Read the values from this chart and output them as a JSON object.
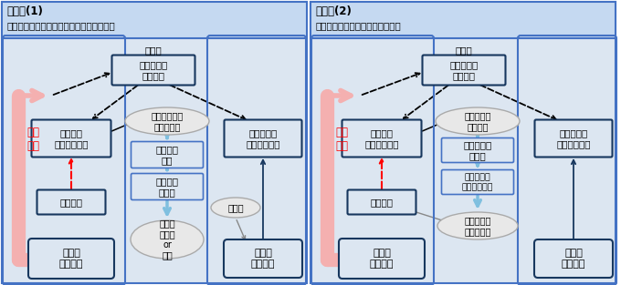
{
  "fig_width": 6.8,
  "fig_height": 3.13,
  "dpi": 100,
  "bg_color": "#ffffff",
  "panel_bg": "#dce6f1",
  "panel_border": "#4472c4",
  "header_bg": "#c5d9f1",
  "box_fill": "#dce6f1",
  "box_dark_border": "#17375e",
  "box_blue_border": "#4472c4",
  "ellipse_fill": "#e8e8e8",
  "ellipse_border": "#aaaaaa",
  "arrow_blue": "#7fbfdf",
  "arrow_black": "#000000",
  "arrow_red": "#ff0000",
  "pink_arrow": "#f4b0b0",
  "text_red": "#ff0000",
  "case1_title": "ケース(1)",
  "case1_subtitle": "市場競争鈍化による財政政策を通じた影響",
  "case2_title": "ケース(2)",
  "case2_subtitle": "現地企業が合弁企業の設立を拒否",
  "c1_node_gaigai": "域外国",
  "c1_node_honsha": "多国籍企業\n（本社）",
  "c1_node_gappon": "合弁企業\n（生産拠点）",
  "c1_node_multi_prod": "多国籍企業\n（生産拠点）",
  "c1_node_genchi": "現地企業",
  "c1_node_market_big": "市場の\n大きい国",
  "c1_node_market_small": "市場の\n小さい国",
  "c1_node_kyokyu": "供給量制限で\n利潤最大化",
  "c1_node_shohi": "消費者の\n損失",
  "c1_node_kigyo": "企業誘致\nを鑑踏",
  "c1_node_sukunai": "少ない\n補助金\nor\n税金",
  "c1_node_hojo": "補助金",
  "c1_text_shushi": "出資\n規制",
  "c2_node_gaigai": "域外国",
  "c2_node_honsha": "多国籍企業\n（本社）",
  "c2_node_gappon": "合弁企業\n（生産拠点）",
  "c2_node_multi_prod": "多国籍企業\n（生産拠点）",
  "c2_node_genchi": "現地企業",
  "c2_node_market_big": "市場の\n大きい国",
  "c2_node_market_small": "市場の\n小さい国",
  "c2_node_shushi_rate": "出資比率で\n利益分配",
  "c2_node_shushi_kibishii": "出資規制が\n厳しい",
  "c2_node_rieki": "現地企業の\n利益配分減少",
  "c2_node_kyohi": "合弁企業の\n設立を拒否",
  "c2_text_shushi": "出資\n規制"
}
